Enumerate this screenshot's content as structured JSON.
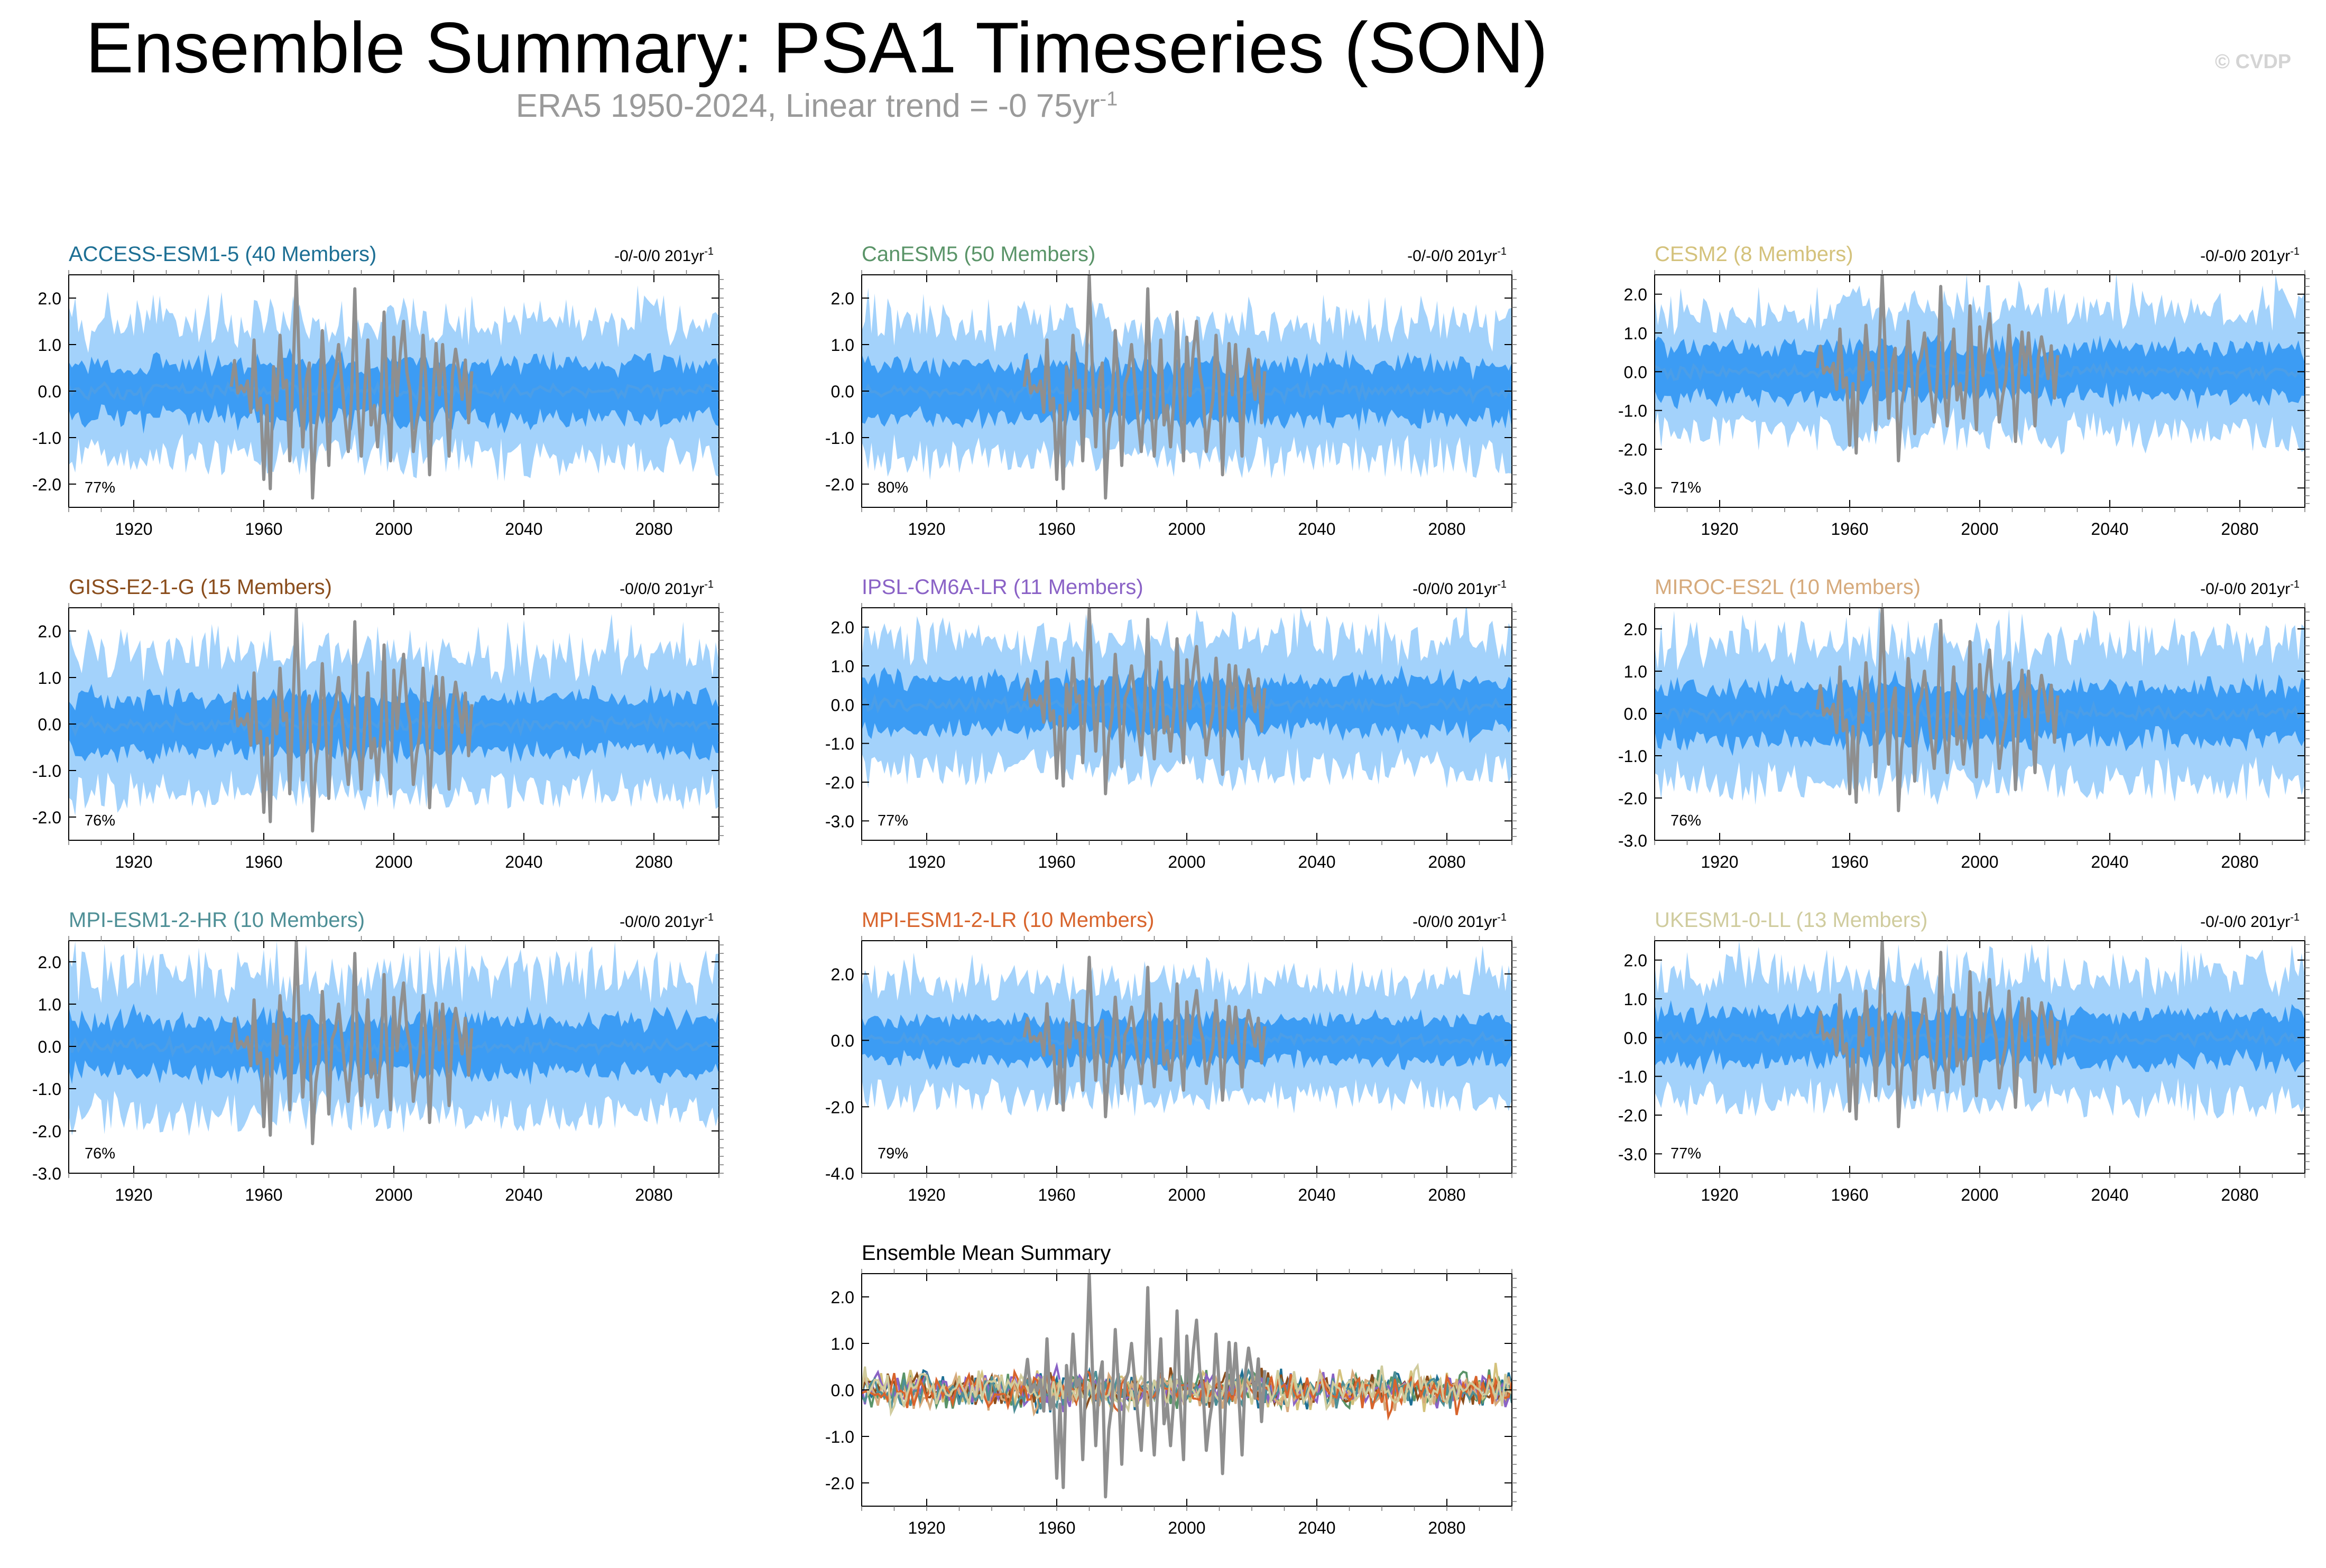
{
  "title": "Ensemble Summary: PSA1 Timeseries (SON)",
  "subtitle": {
    "text": "ERA5 1950-2024, Linear trend = -0 75yr",
    "superscript": "-1"
  },
  "credit": "© CVDP",
  "colors": {
    "outer_band": "#a3d2fb",
    "inner_band": "#3c9cf4",
    "mean_line": "#4b9ee8",
    "observations": "#8f8f8f"
  },
  "chart_data": [
    {
      "type": "area",
      "title": "ACCESS-ESM1-5 (40 Members)",
      "title_color": "#1d6f94",
      "trend_label": "-0/-0/0 201yr",
      "trend_superscript": "-1",
      "percent_label": "77%",
      "xlim": [
        1900,
        2100
      ],
      "ylim": [
        -2.5,
        2.5
      ],
      "yticks": [
        -2.0,
        -1.0,
        0.0,
        1.0,
        2.0
      ],
      "xticks": [
        1920,
        1960,
        2000,
        2040,
        2080
      ],
      "outer_halfwidth": 1.35,
      "inner_halfwidth": 0.55,
      "obs_period": [
        1950,
        2024
      ]
    },
    {
      "type": "area",
      "title": "CanESM5 (50 Members)",
      "title_color": "#5a9468",
      "trend_label": "-0/-0/0 201yr",
      "trend_superscript": "-1",
      "percent_label": "80%",
      "xlim": [
        1900,
        2100
      ],
      "ylim": [
        -2.5,
        2.5
      ],
      "yticks": [
        -2.0,
        -1.0,
        0.0,
        1.0,
        2.0
      ],
      "xticks": [
        1920,
        1960,
        2000,
        2040,
        2080
      ],
      "outer_halfwidth": 1.35,
      "inner_halfwidth": 0.55,
      "obs_period": [
        1950,
        2024
      ]
    },
    {
      "type": "area",
      "title": "CESM2 (8 Members)",
      "title_color": "#d4c27c",
      "trend_label": "-0/-0/0 201yr",
      "trend_superscript": "-1",
      "percent_label": "71%",
      "xlim": [
        1900,
        2100
      ],
      "ylim": [
        -3.5,
        2.5
      ],
      "yticks": [
        -3.0,
        -2.0,
        -1.0,
        0.0,
        1.0,
        2.0
      ],
      "xticks": [
        1920,
        1960,
        2000,
        2040,
        2080
      ],
      "outer_halfwidth": 1.5,
      "inner_halfwidth": 0.6,
      "obs_period": [
        1950,
        2024
      ]
    },
    {
      "type": "area",
      "title": "GISS-E2-1-G (15 Members)",
      "title_color": "#8a4d1c",
      "trend_label": "-0/0/0 201yr",
      "trend_superscript": "-1",
      "percent_label": "76%",
      "xlim": [
        1900,
        2100
      ],
      "ylim": [
        -2.5,
        2.5
      ],
      "yticks": [
        -2.0,
        -1.0,
        0.0,
        1.0,
        2.0
      ],
      "xticks": [
        1920,
        1960,
        2000,
        2040,
        2080
      ],
      "outer_halfwidth": 1.35,
      "inner_halfwidth": 0.55,
      "obs_period": [
        1950,
        2024
      ]
    },
    {
      "type": "area",
      "title": "IPSL-CM6A-LR (11 Members)",
      "title_color": "#8a62c6",
      "trend_label": "-0/0/0 201yr",
      "trend_superscript": "-1",
      "percent_label": "77%",
      "xlim": [
        1900,
        2100
      ],
      "ylim": [
        -3.5,
        2.5
      ],
      "yticks": [
        -3.0,
        -2.0,
        -1.0,
        0.0,
        1.0,
        2.0
      ],
      "xticks": [
        1920,
        1960,
        2000,
        2040,
        2080
      ],
      "outer_halfwidth": 1.55,
      "inner_halfwidth": 0.6,
      "obs_period": [
        1950,
        2024
      ]
    },
    {
      "type": "area",
      "title": "MIROC-ES2L (10 Members)",
      "title_color": "#d6aa7c",
      "trend_label": "-0/-0/0 201yr",
      "trend_superscript": "-1",
      "percent_label": "76%",
      "xlim": [
        1900,
        2100
      ],
      "ylim": [
        -3.0,
        2.5
      ],
      "yticks": [
        -3.0,
        -2.0,
        -1.0,
        0.0,
        1.0,
        2.0
      ],
      "xticks": [
        1920,
        1960,
        2000,
        2040,
        2080
      ],
      "outer_halfwidth": 1.5,
      "inner_halfwidth": 0.6,
      "obs_period": [
        1950,
        2024
      ]
    },
    {
      "type": "area",
      "title": "MPI-ESM1-2-HR (10 Members)",
      "title_color": "#4e8f96",
      "trend_label": "-0/0/0 201yr",
      "trend_superscript": "-1",
      "percent_label": "76%",
      "xlim": [
        1900,
        2100
      ],
      "ylim": [
        -3.0,
        2.5
      ],
      "yticks": [
        -3.0,
        -2.0,
        -1.0,
        0.0,
        1.0,
        2.0
      ],
      "xticks": [
        1920,
        1960,
        2000,
        2040,
        2080
      ],
      "outer_halfwidth": 1.5,
      "inner_halfwidth": 0.6,
      "obs_period": [
        1950,
        2024
      ]
    },
    {
      "type": "area",
      "title": "MPI-ESM1-2-LR (10 Members)",
      "title_color": "#d8642c",
      "trend_label": "-0/0/0 201yr",
      "trend_superscript": "-1",
      "percent_label": "79%",
      "xlim": [
        1900,
        2100
      ],
      "ylim": [
        -4.0,
        3.0
      ],
      "yticks": [
        -4.0,
        -2.0,
        0.0,
        2.0
      ],
      "xticks": [
        1920,
        1960,
        2000,
        2040,
        2080
      ],
      "outer_halfwidth": 1.6,
      "inner_halfwidth": 0.6,
      "obs_period": [
        1950,
        2024
      ]
    },
    {
      "type": "area",
      "title": "UKESM1-0-LL (13 Members)",
      "title_color": "#d0cc9e",
      "trend_label": "-0/-0/0 201yr",
      "trend_superscript": "-1",
      "percent_label": "77%",
      "xlim": [
        1900,
        2100
      ],
      "ylim": [
        -3.5,
        2.5
      ],
      "yticks": [
        -3.0,
        -2.0,
        -1.0,
        0.0,
        1.0,
        2.0
      ],
      "xticks": [
        1920,
        1960,
        2000,
        2040,
        2080
      ],
      "outer_halfwidth": 1.5,
      "inner_halfwidth": 0.6,
      "obs_period": [
        1950,
        2024
      ]
    },
    {
      "type": "line",
      "title": "Ensemble Mean Summary",
      "title_color": "#000000",
      "xlim": [
        1900,
        2100
      ],
      "ylim": [
        -2.5,
        2.5
      ],
      "yticks": [
        -2.0,
        -1.0,
        0.0,
        1.0,
        2.0
      ],
      "xticks": [
        1920,
        1960,
        2000,
        2040,
        2080
      ],
      "obs_period": [
        1950,
        2024
      ],
      "series_colors": [
        "#1d6f94",
        "#5a9468",
        "#d4c27c",
        "#8a4d1c",
        "#8a62c6",
        "#d6aa7c",
        "#4e8f96",
        "#d8642c",
        "#d0cc9e"
      ]
    }
  ]
}
